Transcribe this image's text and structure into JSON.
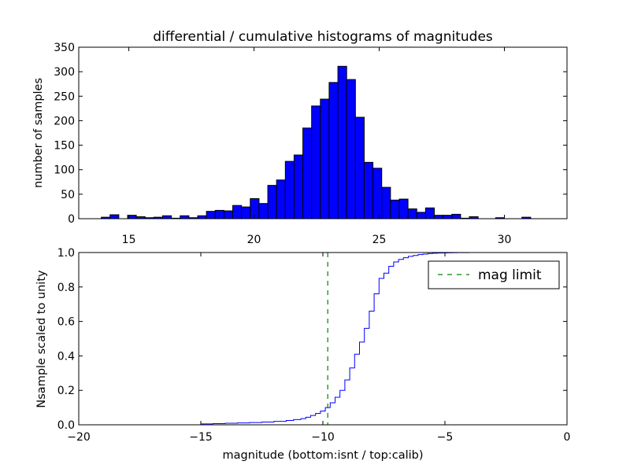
{
  "chart_data": [
    {
      "type": "bar",
      "title": "differential / cumulative histograms of magnitudes",
      "xlabel": "",
      "ylabel": "number of samples",
      "xlim": [
        13.0,
        32.5
      ],
      "ylim": [
        0,
        350
      ],
      "xticks": [
        15,
        20,
        25,
        30
      ],
      "yticks": [
        0,
        50,
        100,
        150,
        200,
        250,
        300,
        350
      ],
      "bin_edges": [
        13.9,
        14.25,
        14.6,
        14.95,
        15.3,
        15.65,
        16.0,
        16.35,
        16.7,
        17.05,
        17.4,
        17.75,
        18.1,
        18.45,
        18.8,
        19.15,
        19.5,
        19.85,
        20.2,
        20.55,
        20.9,
        21.25,
        21.6,
        21.95,
        22.3,
        22.65,
        23.0,
        23.35,
        23.7,
        24.05,
        24.4,
        24.75,
        25.1,
        25.45,
        25.8,
        26.15,
        26.5,
        26.85,
        27.2,
        27.55,
        27.9,
        28.25,
        28.6,
        28.95,
        29.3,
        29.65,
        30.0,
        30.35,
        30.7,
        31.05
      ],
      "values": [
        3,
        8,
        0,
        7,
        4,
        2,
        3,
        6,
        1,
        6,
        2,
        6,
        15,
        17,
        16,
        27,
        24,
        41,
        31,
        68,
        79,
        117,
        130,
        185,
        230,
        244,
        278,
        311,
        284,
        207,
        115,
        103,
        64,
        38,
        40,
        20,
        13,
        22,
        7,
        7,
        9,
        1,
        4,
        0,
        0,
        2,
        0,
        0,
        3
      ],
      "bar_color": "#0000ff",
      "edge_color": "#000000"
    },
    {
      "type": "line",
      "xlabel": "magnitude (bottom:isnt / top:calib)",
      "ylabel": "Nsample scaled to unity",
      "xlim": [
        -20,
        0
      ],
      "ylim": [
        0.0,
        1.0
      ],
      "xticks": [
        -20,
        -15,
        -10,
        -5,
        0
      ],
      "xtick_labels": [
        "−20",
        "−15",
        "−10",
        "−5",
        "0"
      ],
      "yticks": [
        0.0,
        0.2,
        0.4,
        0.6,
        0.8,
        1.0
      ],
      "ytick_labels": [
        "0.0",
        "0.2",
        "0.4",
        "0.6",
        "0.8",
        "1.0"
      ],
      "legend_position": "top-right",
      "series": [
        {
          "kind": "step",
          "color": "#0000ff",
          "x": [
            -19.8,
            -15.0,
            -14.5,
            -14.0,
            -13.5,
            -13.0,
            -12.5,
            -12.0,
            -11.5,
            -11.2,
            -10.9,
            -10.7,
            -10.5,
            -10.3,
            -10.1,
            -9.9,
            -9.7,
            -9.5,
            -9.3,
            -9.1,
            -8.9,
            -8.7,
            -8.5,
            -8.3,
            -8.1,
            -7.9,
            -7.7,
            -7.5,
            -7.3,
            -7.1,
            -6.9,
            -6.7,
            -6.5,
            -6.3,
            -6.1,
            -5.9,
            -5.7,
            -5.5,
            -5.3,
            -5.1,
            -4.9,
            -4.7,
            -4.5,
            -4.3,
            -4.0,
            -3.5,
            -3.0,
            -2.5,
            -2.0,
            -1.5,
            -1.0,
            -0.5,
            -0.1
          ],
          "y": [
            0.0,
            0.005,
            0.007,
            0.009,
            0.011,
            0.013,
            0.016,
            0.02,
            0.025,
            0.03,
            0.036,
            0.044,
            0.054,
            0.066,
            0.08,
            0.1,
            0.128,
            0.16,
            0.2,
            0.26,
            0.33,
            0.41,
            0.48,
            0.56,
            0.66,
            0.76,
            0.85,
            0.88,
            0.92,
            0.945,
            0.96,
            0.97,
            0.978,
            0.983,
            0.988,
            0.991,
            0.994,
            0.996,
            0.997,
            0.998,
            0.9985,
            0.999,
            0.9994,
            0.9996,
            0.9998,
            0.9999,
            1.0,
            1.0,
            1.0,
            1.0,
            1.0,
            1.0,
            1.0
          ]
        },
        {
          "kind": "vline",
          "name": "mag limit",
          "color": "#008000",
          "linestyle": "dashed",
          "x": -9.8
        }
      ]
    }
  ]
}
